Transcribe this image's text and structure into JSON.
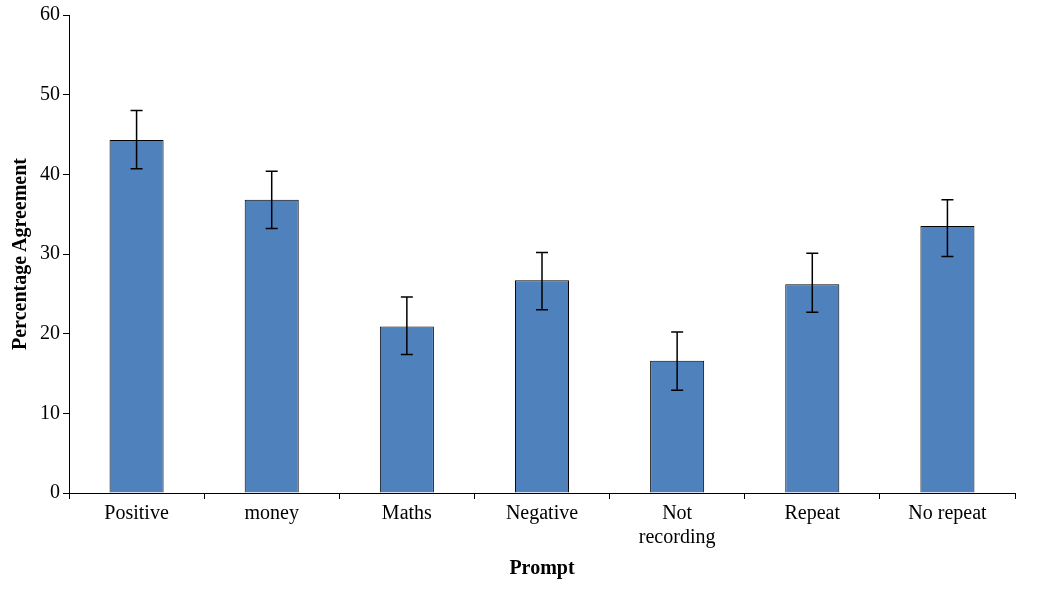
{
  "chart_data": {
    "type": "bar",
    "xlabel": "Prompt",
    "ylabel": "Percentage Agreement",
    "categories": [
      "Positive",
      "money",
      "Maths",
      "Negative",
      "Not recording",
      "Repeat",
      "No repeat"
    ],
    "values": [
      44.3,
      36.8,
      20.9,
      26.7,
      16.6,
      26.2,
      33.5
    ],
    "errors": [
      [
        40.7,
        48.0
      ],
      [
        33.2,
        40.4
      ],
      [
        17.4,
        24.6
      ],
      [
        23.0,
        30.2
      ],
      [
        12.9,
        20.2
      ],
      [
        22.7,
        30.1
      ],
      [
        29.7,
        36.8
      ]
    ],
    "color": "#4f81bd",
    "ylim": [
      0,
      60
    ],
    "yticks": [
      0,
      10,
      20,
      30,
      40,
      50,
      60
    ],
    "grid": false,
    "legend": false
  }
}
